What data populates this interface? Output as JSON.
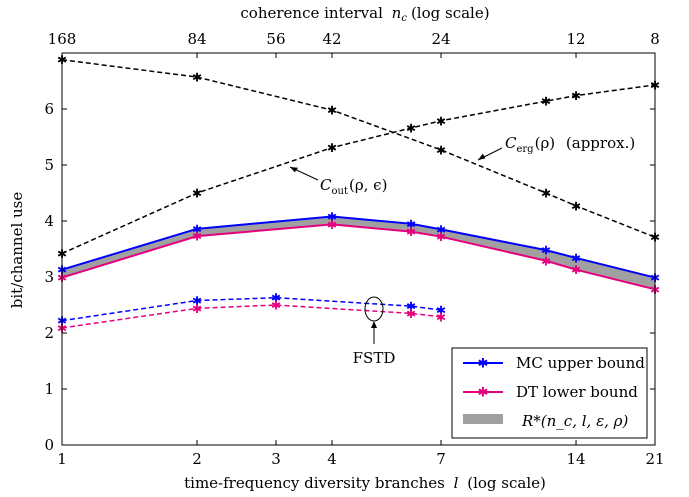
{
  "chart_data": {
    "type": "line",
    "xlabel_bottom": "time-frequency diversity branches",
    "xlabel_bottom_var": "l",
    "xlabel_bottom_suffix": "(log scale)",
    "xlabel_top": "coherence interval",
    "xlabel_top_var": "n",
    "xlabel_top_sub": "c",
    "xlabel_top_suffix": "(log scale)",
    "ylabel": "bit/channel use",
    "x_scale": "log",
    "xlim": [
      1,
      21
    ],
    "ylim": [
      0,
      7
    ],
    "x_ticks": [
      1,
      2,
      3,
      4,
      7,
      14,
      21
    ],
    "x_tick_labels": [
      "1",
      "2",
      "3",
      "4",
      "7",
      "14",
      "21"
    ],
    "top_ticks": [
      1,
      2,
      3,
      4,
      7,
      14,
      21
    ],
    "top_tick_labels": [
      "168",
      "84",
      "56",
      "42",
      "24",
      "12",
      "8"
    ],
    "y_ticks": [
      0,
      1,
      2,
      3,
      4,
      5,
      6
    ],
    "y_tick_labels": [
      "0",
      "1",
      "2",
      "3",
      "4",
      "5",
      "6"
    ],
    "series": [
      {
        "key": "mc",
        "name": "MC upper bound",
        "color": "#0000ff",
        "style": "solid",
        "x": [
          1,
          2,
          4,
          6,
          7,
          12,
          14,
          21
        ],
        "y": [
          3.13,
          3.86,
          4.08,
          3.95,
          3.85,
          3.48,
          3.34,
          2.99
        ]
      },
      {
        "key": "dt",
        "name": "DT lower bound",
        "color": "#e6007e",
        "style": "solid",
        "x": [
          1,
          2,
          4,
          6,
          7,
          12,
          14,
          21
        ],
        "y": [
          2.99,
          3.73,
          3.94,
          3.81,
          3.72,
          3.29,
          3.13,
          2.78
        ]
      },
      {
        "key": "mc_fstd",
        "color": "#0000ff",
        "style": "dashed",
        "x": [
          1,
          2,
          3,
          6,
          7
        ],
        "y": [
          2.22,
          2.58,
          2.63,
          2.48,
          2.41
        ]
      },
      {
        "key": "dt_fstd",
        "color": "#e6007e",
        "style": "dashed",
        "x": [
          1,
          2,
          3,
          6,
          7
        ],
        "y": [
          2.09,
          2.44,
          2.5,
          2.35,
          2.29
        ]
      },
      {
        "key": "c_out",
        "color": "#000000",
        "style": "dashed",
        "x": [
          1,
          2,
          4,
          6,
          7,
          12,
          14,
          21
        ],
        "y": [
          3.42,
          4.5,
          5.31,
          5.66,
          5.79,
          6.14,
          6.24,
          6.43
        ]
      },
      {
        "key": "c_erg",
        "color": "#000000",
        "style": "dashed",
        "x": [
          1,
          2,
          4,
          7,
          12,
          14,
          21
        ],
        "y": [
          6.88,
          6.57,
          5.98,
          5.27,
          4.5,
          4.27,
          3.71
        ]
      }
    ],
    "fill_band": {
      "name": "R*(n_c, l, ε, ρ)",
      "between": [
        "mc",
        "dt"
      ],
      "color": "#a0a0a0"
    },
    "legend": {
      "placement": "bottom-right",
      "entries": [
        {
          "label": "MC upper bound",
          "color": "#0000ff",
          "kind": "line"
        },
        {
          "label": "DT lower bound",
          "color": "#e6007e",
          "kind": "line"
        },
        {
          "label": "R*(n_c, l, ε, ρ)",
          "color": "#a0a0a0",
          "kind": "fill"
        }
      ]
    },
    "annotations": {
      "c_out": {
        "main": "C",
        "sub": "out",
        "rest": "(ρ, ϵ)"
      },
      "c_erg": {
        "main": "C",
        "sub": "erg",
        "rest": "(ρ)",
        "suffix": "(approx.)"
      },
      "fstd": "FSTD"
    }
  }
}
